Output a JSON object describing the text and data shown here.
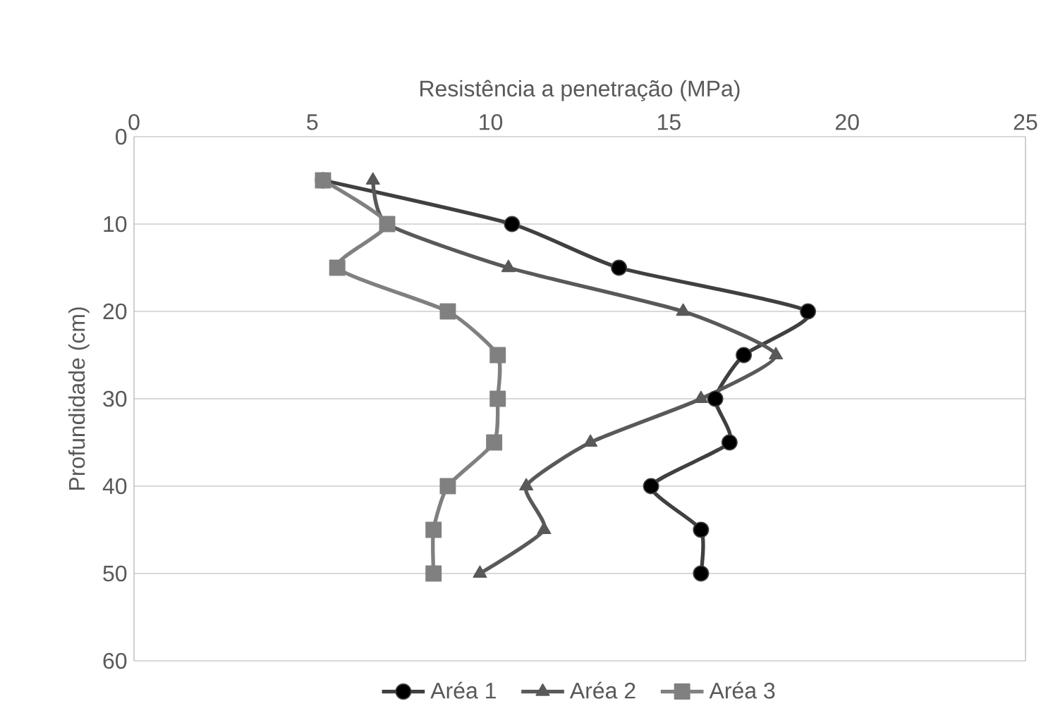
{
  "chart_data": {
    "type": "line",
    "xlabel": "Resistência a penetração (MPa)",
    "ylabel": "Profundidade (cm)",
    "xlim": [
      0,
      25
    ],
    "xticks": [
      0,
      5,
      10,
      15,
      20,
      25
    ],
    "ylim": [
      60,
      0
    ],
    "yticks": [
      0,
      10,
      20,
      30,
      40,
      50,
      60
    ],
    "grid": "y",
    "legend": "bottom",
    "series": [
      {
        "name": "Aréa 1",
        "color": "#404040",
        "marker": "circle",
        "x": [
          5.3,
          10.6,
          13.6,
          18.9,
          17.1,
          16.3,
          16.7,
          14.5,
          15.9,
          15.9
        ],
        "values": [
          5,
          10,
          15,
          20,
          25,
          30,
          35,
          40,
          45,
          50
        ]
      },
      {
        "name": "Aréa 2",
        "color": "#595959",
        "marker": "triangle",
        "x": [
          6.7,
          7.1,
          10.5,
          15.4,
          18.0,
          15.9,
          12.8,
          11.0,
          11.5,
          9.7
        ],
        "values": [
          5,
          10,
          15,
          20,
          25,
          30,
          35,
          40,
          45,
          50
        ]
      },
      {
        "name": "Aréa 3",
        "color": "#808080",
        "marker": "square",
        "x": [
          5.3,
          7.1,
          5.7,
          8.8,
          10.2,
          10.2,
          10.1,
          8.8,
          8.4,
          8.4
        ],
        "values": [
          5,
          10,
          15,
          20,
          25,
          30,
          35,
          40,
          45,
          50
        ]
      }
    ]
  }
}
